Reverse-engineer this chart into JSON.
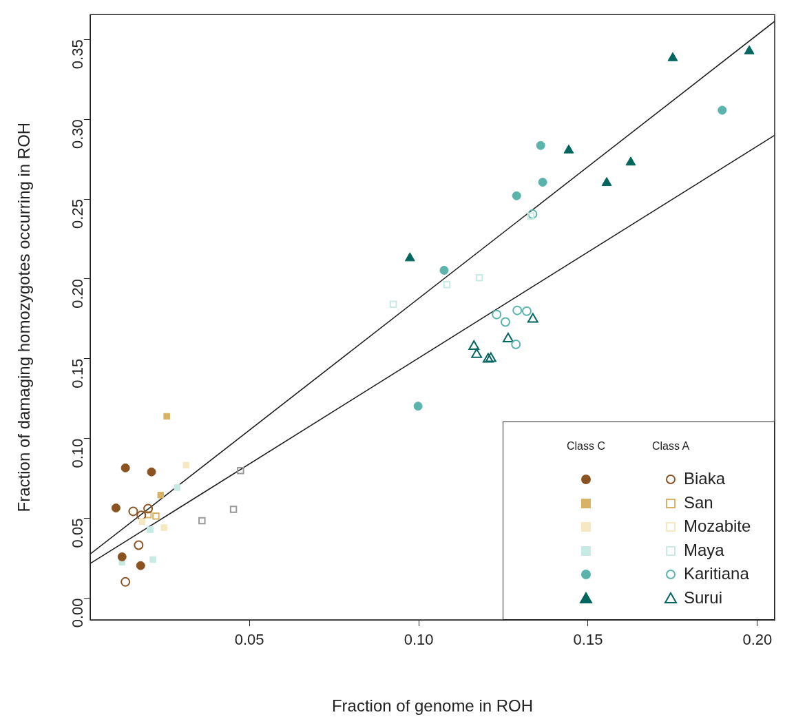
{
  "chart_data": {
    "type": "scatter",
    "xlabel": "Fraction of genome in ROH",
    "ylabel": "Fraction of damaging homozygotes occurring in ROH",
    "xlim": [
      0.003,
      0.2051
    ],
    "ylim": [
      -0.0136,
      0.3656
    ],
    "xticks": [
      0.05,
      {
        "value": 0.1,
        "label": "0.10"
      },
      0.15,
      {
        "value": 0.2,
        "label": "0.20"
      }
    ],
    "yticks": [
      {
        "value": 0,
        "label": "0.00"
      },
      0.05,
      {
        "value": 0.1,
        "label": "0.10"
      },
      0.15,
      {
        "value": 0.2,
        "label": "0.20"
      },
      0.25,
      {
        "value": 0.3,
        "label": "0.30"
      },
      0.35
    ],
    "grid": false,
    "legend": "bottom right",
    "annotations": [
      "Class C",
      "Class A"
    ],
    "series": [
      {
        "name": "Biaka",
        "color": "#8c5322",
        "marker": "circle",
        "x": [
          0.0134,
          0.0211,
          0.0106,
          0.0124,
          0.0179
        ],
        "values": [
          0.0816,
          0.0791,
          0.0565,
          0.0259,
          0.0204
        ]
      },
      {
        "name": "San",
        "color": "#d8b365",
        "marker": "square",
        "x": [
          0.0256,
          0.0238
        ],
        "values": [
          0.1139,
          0.0646
        ]
      },
      {
        "name": "Mozabite",
        "color": "#f6e8c3",
        "marker": "square",
        "x": [
          0.0313,
          0.0183,
          0.0248
        ],
        "values": [
          0.0833,
          0.048,
          0.0442
        ]
      },
      {
        "name": "Maya",
        "color": "#c7eae5",
        "marker": "square",
        "x": [
          0.0287,
          0.0207,
          0.0215,
          0.0124
        ],
        "values": [
          0.0693,
          0.0429,
          0.0242,
          0.0225
        ]
      },
      {
        "name": "Karitiana",
        "color": "#5ab4ac",
        "marker": "circle",
        "x": [
          0.1075,
          0.0998,
          0.136,
          0.1366,
          0.1289,
          0.1896
        ],
        "values": [
          0.2054,
          0.1203,
          0.2836,
          0.2606,
          0.2521,
          0.3057
        ]
      },
      {
        "name": "Surui",
        "color": "#01665e",
        "marker": "triangle",
        "x": [
          0.0974,
          0.1443,
          0.1626,
          0.1555,
          0.175,
          0.1976
        ],
        "values": [
          0.213,
          0.2806,
          0.273,
          0.2602,
          0.3384,
          0.3427
        ]
      },
      {
        "color": "#8c5322",
        "marker": "circle",
        "x": [
          0.0157,
          0.0181,
          0.0201,
          0.0173,
          0.0134
        ],
        "values": [
          0.0544,
          0.0519,
          0.0561,
          0.0332,
          0.0102
        ]
      },
      {
        "color": "#d8b365",
        "marker": "square",
        "x": [
          0.0224,
          0.0201
        ],
        "values": [
          0.0514,
          0.0523
        ]
      },
      {
        "color": "#c7eae5",
        "marker": "square",
        "x": [
          0.1083,
          0.1179,
          0.0925,
          0.1331
        ],
        "values": [
          0.1964,
          0.2007,
          0.1841,
          0.2394
        ]
      },
      {
        "color": "#5ab4ac",
        "marker": "circle",
        "x": [
          0.123,
          0.1256,
          0.1291,
          0.1319,
          0.1287,
          0.1336
        ],
        "values": [
          0.1777,
          0.173,
          0.1803,
          0.1798,
          0.159,
          0.2406
        ]
      },
      {
        "color": "#01665e",
        "marker": "triangle",
        "x": [
          0.1163,
          0.1171,
          0.1205,
          0.1213,
          0.1264,
          0.1337
        ],
        "values": [
          0.1577,
          0.1526,
          0.1497,
          0.1501,
          0.1624,
          0.1747
        ]
      },
      {
        "color": "#999999",
        "marker": "square",
        "x": [
          0.0474,
          0.0453,
          0.036
        ],
        "values": [
          0.0799,
          0.0557,
          0.0485
        ]
      },
      {
        "type": "line",
        "color": "#1a1a1a",
        "marker": "none",
        "x": [
          0.003,
          0.2051
        ],
        "values": [
          0.0276,
          0.3614
        ]
      },
      {
        "type": "line",
        "color": "#1a1a1a",
        "marker": "none",
        "x": [
          0.003,
          0.2051
        ],
        "values": [
          0.0217,
          0.29
        ]
      }
    ]
  }
}
